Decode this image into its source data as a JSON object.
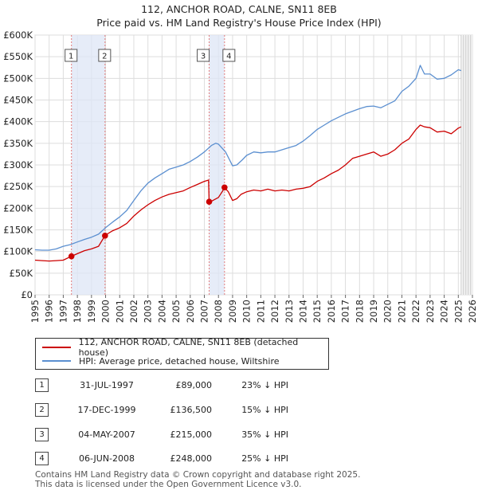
{
  "title": "112, ANCHOR ROAD, CALNE, SN11 8EB",
  "subtitle": "Price paid vs. HM Land Registry's House Price Index (HPI)",
  "legend": {
    "property": "112, ANCHOR ROAD, CALNE, SN11 8EB (detached house)",
    "hpi": "HPI: Average price, detached house, Wiltshire"
  },
  "colors": {
    "property": "#cc0000",
    "hpi": "#5b8fd0",
    "shade": "#dde6f6",
    "vline": "#e27b7b",
    "grid": "#dddddd"
  },
  "transactions": [
    {
      "num": "1",
      "date": "31-JUL-1997",
      "price": "£89,000",
      "hpi": "23% ↓ HPI"
    },
    {
      "num": "2",
      "date": "17-DEC-1999",
      "price": "£136,500",
      "hpi": "15% ↓ HPI"
    },
    {
      "num": "3",
      "date": "04-MAY-2007",
      "price": "£215,000",
      "hpi": "35% ↓ HPI"
    },
    {
      "num": "4",
      "date": "06-JUN-2008",
      "price": "£248,000",
      "hpi": "25% ↓ HPI"
    }
  ],
  "footer": {
    "line1": "Contains HM Land Registry data © Crown copyright and database right 2025.",
    "line2": "This data is licensed under the Open Government Licence v3.0."
  },
  "chart_data": {
    "type": "line",
    "title": "112, ANCHOR ROAD, CALNE, SN11 8EB",
    "subtitle": "Price paid vs. HM Land Registry's House Price Index (HPI)",
    "xlabel": "",
    "ylabel": "",
    "xlim": [
      1995,
      2026
    ],
    "ylim": [
      0,
      600000
    ],
    "grid": true,
    "legend_position": "below",
    "x_ticks": [
      "1995",
      "1996",
      "1997",
      "1998",
      "1999",
      "2000",
      "2001",
      "2002",
      "2003",
      "2004",
      "2005",
      "2006",
      "2007",
      "2008",
      "2009",
      "2010",
      "2011",
      "2012",
      "2013",
      "2014",
      "2015",
      "2016",
      "2017",
      "2018",
      "2019",
      "2020",
      "2021",
      "2022",
      "2023",
      "2024",
      "2025",
      "2026"
    ],
    "y_ticks": [
      {
        "value": 0,
        "label": "£0"
      },
      {
        "value": 50000,
        "label": "£50K"
      },
      {
        "value": 100000,
        "label": "£100K"
      },
      {
        "value": 150000,
        "label": "£150K"
      },
      {
        "value": 200000,
        "label": "£200K"
      },
      {
        "value": 250000,
        "label": "£250K"
      },
      {
        "value": 300000,
        "label": "£300K"
      },
      {
        "value": 350000,
        "label": "£350K"
      },
      {
        "value": 400000,
        "label": "£400K"
      },
      {
        "value": 450000,
        "label": "£450K"
      },
      {
        "value": 500000,
        "label": "£500K"
      },
      {
        "value": 550000,
        "label": "£550K"
      },
      {
        "value": 600000,
        "label": "£600K"
      }
    ],
    "shaded_ranges": [
      [
        1997.58,
        1999.96
      ],
      [
        2007.34,
        2008.43
      ]
    ],
    "projection_start": 2025.2,
    "series": [
      {
        "name": "112, ANCHOR ROAD, CALNE, SN11 8EB (detached house)",
        "x": [
          1995.0,
          1995.5,
          1996.0,
          1996.5,
          1997.0,
          1997.58,
          1998.0,
          1998.5,
          1999.0,
          1999.5,
          1999.96,
          2000.0,
          2000.5,
          2001.0,
          2001.5,
          2002.0,
          2002.5,
          2003.0,
          2003.5,
          2004.0,
          2004.5,
          2005.0,
          2005.5,
          2006.0,
          2006.5,
          2007.0,
          2007.3,
          2007.34,
          2007.5,
          2008.0,
          2008.3,
          2008.43,
          2008.7,
          2009.0,
          2009.3,
          2009.6,
          2010.0,
          2010.5,
          2011.0,
          2011.5,
          2012.0,
          2012.5,
          2013.0,
          2013.5,
          2014.0,
          2014.5,
          2015.0,
          2015.5,
          2016.0,
          2016.5,
          2017.0,
          2017.5,
          2018.0,
          2018.5,
          2019.0,
          2019.5,
          2020.0,
          2020.5,
          2021.0,
          2021.5,
          2022.0,
          2022.3,
          2022.6,
          2023.0,
          2023.5,
          2024.0,
          2024.5,
          2025.0,
          2025.2
        ],
        "values": [
          80000,
          79000,
          78000,
          79000,
          80000,
          89000,
          95000,
          102000,
          106000,
          112000,
          136500,
          138000,
          148000,
          155000,
          165000,
          182000,
          196000,
          208000,
          218000,
          226000,
          232000,
          236000,
          240000,
          248000,
          255000,
          262000,
          265000,
          215000,
          216000,
          225000,
          240000,
          248000,
          238000,
          218000,
          222000,
          232000,
          238000,
          242000,
          240000,
          244000,
          240000,
          242000,
          240000,
          244000,
          246000,
          250000,
          262000,
          270000,
          280000,
          288000,
          300000,
          315000,
          320000,
          325000,
          330000,
          320000,
          325000,
          335000,
          350000,
          360000,
          382000,
          392000,
          388000,
          386000,
          376000,
          378000,
          372000,
          385000,
          388000
        ]
      },
      {
        "name": "HPI: Average price, detached house, Wiltshire",
        "x": [
          1995.0,
          1995.5,
          1996.0,
          1996.5,
          1997.0,
          1997.5,
          1998.0,
          1998.5,
          1999.0,
          1999.5,
          2000.0,
          2000.5,
          2001.0,
          2001.5,
          2002.0,
          2002.5,
          2003.0,
          2003.5,
          2004.0,
          2004.5,
          2005.0,
          2005.5,
          2006.0,
          2006.5,
          2007.0,
          2007.5,
          2007.8,
          2008.0,
          2008.5,
          2009.0,
          2009.3,
          2009.7,
          2010.0,
          2010.5,
          2011.0,
          2011.5,
          2012.0,
          2012.5,
          2013.0,
          2013.5,
          2014.0,
          2014.5,
          2015.0,
          2015.5,
          2016.0,
          2016.5,
          2017.0,
          2017.5,
          2018.0,
          2018.5,
          2019.0,
          2019.5,
          2020.0,
          2020.5,
          2021.0,
          2021.5,
          2022.0,
          2022.3,
          2022.6,
          2023.0,
          2023.5,
          2024.0,
          2024.5,
          2025.0,
          2025.2
        ],
        "values": [
          104000,
          103000,
          103000,
          106000,
          112000,
          116000,
          122000,
          128000,
          133000,
          140000,
          155000,
          168000,
          180000,
          195000,
          218000,
          240000,
          258000,
          270000,
          280000,
          290000,
          295000,
          300000,
          308000,
          318000,
          330000,
          345000,
          350000,
          348000,
          330000,
          298000,
          300000,
          312000,
          322000,
          330000,
          328000,
          330000,
          330000,
          335000,
          340000,
          345000,
          355000,
          368000,
          382000,
          392000,
          402000,
          410000,
          418000,
          424000,
          430000,
          435000,
          436000,
          432000,
          440000,
          448000,
          470000,
          482000,
          500000,
          530000,
          510000,
          510000,
          498000,
          500000,
          508000,
          520000,
          518000
        ]
      }
    ],
    "markers": [
      {
        "label": "1",
        "x": 1997.58,
        "y": 89000
      },
      {
        "label": "2",
        "x": 1999.96,
        "y": 136500
      },
      {
        "label": "3",
        "x": 2007.34,
        "y": 215000
      },
      {
        "label": "4",
        "x": 2008.43,
        "y": 248000
      }
    ]
  }
}
